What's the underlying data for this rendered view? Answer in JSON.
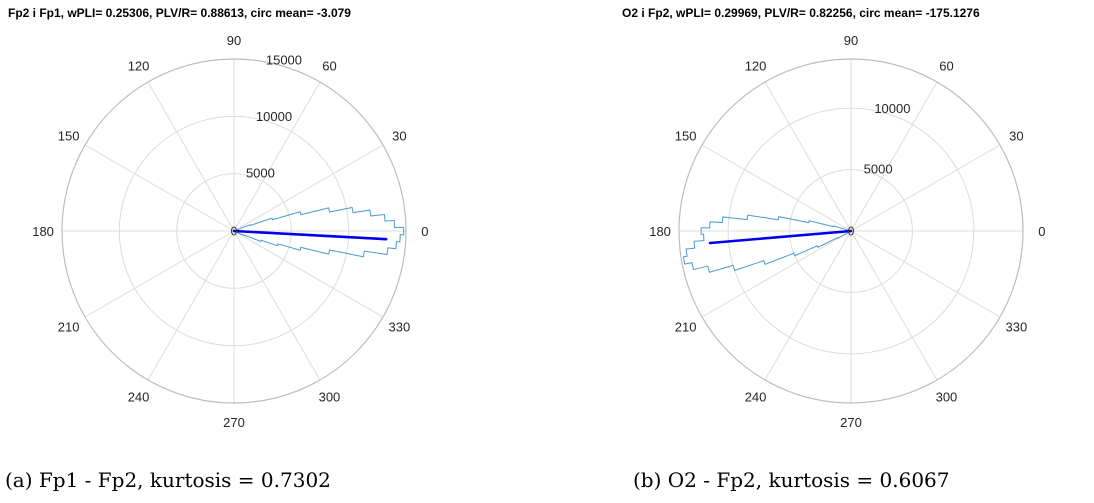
{
  "chart_data": [
    {
      "type": "polar-histogram",
      "title": "Fp2 i Fp1, wPLI= 0.25306, PLV/R= 0.88613, circ mean= -3.079",
      "caption": "(a) Fp1 - Fp2, kurtosis = 0.7302",
      "angle_ticks": [
        "0",
        "30",
        "60",
        "90",
        "120",
        "150",
        "180",
        "210",
        "240",
        "270",
        "300",
        "330"
      ],
      "r_ticks": [
        "5000",
        "10000",
        "15000"
      ],
      "r_tick_values": [
        5000,
        10000,
        15000
      ],
      "rlim": [
        0,
        15000
      ],
      "circ_mean_deg": -3.079,
      "resultant_length": 0.88613,
      "histogram_bins_deg": [
        -25,
        -22.5,
        -20,
        -17.5,
        -15,
        -12.5,
        -10,
        -7.5,
        -5,
        -2.5,
        0,
        2.5,
        5,
        7.5,
        10,
        12.5,
        15,
        17.5,
        20,
        22.5
      ],
      "histogram_counts": [
        200,
        1000,
        2500,
        4000,
        6000,
        8500,
        11500,
        13500,
        14200,
        14500,
        14800,
        14000,
        13200,
        12000,
        10500,
        8500,
        6000,
        3500,
        1500,
        200
      ],
      "colors": {
        "histogram": "#4a9bcf",
        "mean_vector": "#0000ee",
        "grid": "#dcdcdc"
      }
    },
    {
      "type": "polar-histogram",
      "title": "O2 i Fp2, wPLI= 0.29969, PLV/R= 0.82256, circ mean= -175.1276",
      "caption": "(b) O2 - Fp2, kurtosis = 0.6067",
      "angle_ticks": [
        "0",
        "30",
        "60",
        "90",
        "120",
        "150",
        "180",
        "210",
        "240",
        "270",
        "300",
        "330"
      ],
      "r_ticks": [
        "5000",
        "10000"
      ],
      "r_tick_values": [
        5000,
        10000
      ],
      "rlim": [
        0,
        14000
      ],
      "circ_mean_deg": -175.1276,
      "resultant_length": 0.82256,
      "histogram_bins_deg": [
        162.5,
        165,
        167.5,
        170,
        172.5,
        175,
        177.5,
        180,
        182.5,
        185,
        187.5,
        190,
        192.5,
        195,
        197.5,
        200,
        202.5,
        205,
        207.5,
        210
      ],
      "histogram_counts": [
        200,
        1500,
        3500,
        6000,
        8500,
        10500,
        11500,
        12200,
        12000,
        12800,
        13500,
        13800,
        13200,
        12000,
        10000,
        7500,
        5000,
        3000,
        1200,
        200
      ],
      "colors": {
        "histogram": "#4a9bcf",
        "mean_vector": "#0000ee",
        "grid": "#dcdcdc"
      }
    }
  ]
}
